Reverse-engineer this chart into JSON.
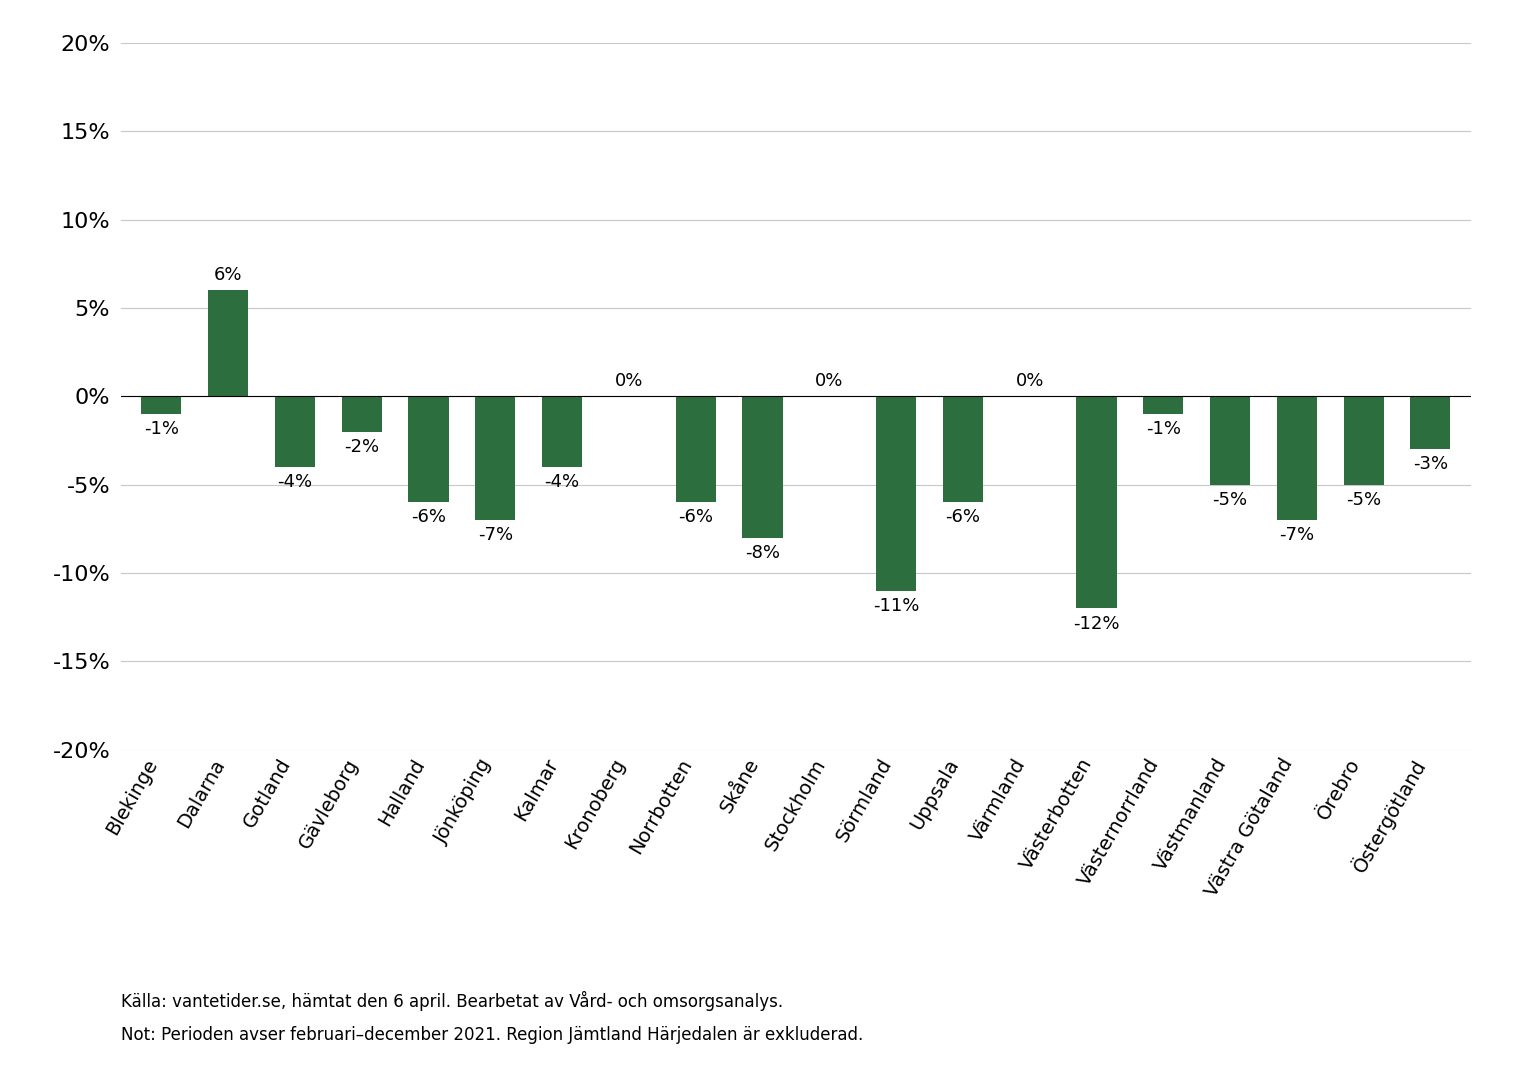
{
  "categories": [
    "Blekinge",
    "Dalarna",
    "Gotland",
    "Gävleborg",
    "Halland",
    "Jönköping",
    "Kalmar",
    "Kronoberg",
    "Norrbotten",
    "Skåne",
    "Stockholm",
    "Sörmland",
    "Uppsala",
    "Värmland",
    "Västerbotten",
    "Västernorrland",
    "Västmanland",
    "Västra Götaland",
    "Örebro",
    "Östergötland"
  ],
  "values": [
    -1,
    6,
    -4,
    -2,
    -6,
    -7,
    -4,
    0,
    -6,
    -8,
    0,
    -11,
    -6,
    0,
    -12,
    -1,
    -5,
    -7,
    -5,
    -3
  ],
  "bar_color": "#2d6e3e",
  "ylim": [
    -20,
    20
  ],
  "yticks": [
    -20,
    -15,
    -10,
    -5,
    0,
    5,
    10,
    15,
    20
  ],
  "background_color": "#ffffff",
  "grid_color": "#c8c8c8",
  "label_fontsize": 13,
  "tick_fontsize": 16,
  "xtick_fontsize": 14,
  "footnote1": "Källa: vantetider.se, hämtat den 6 april. Bearbetat av Vård- och omsorgsanalys.",
  "footnote2": "Not: Perioden avser februari–december 2021. Region Jämtland Härjedalen är exkluderad.",
  "footnote_fontsize": 12
}
